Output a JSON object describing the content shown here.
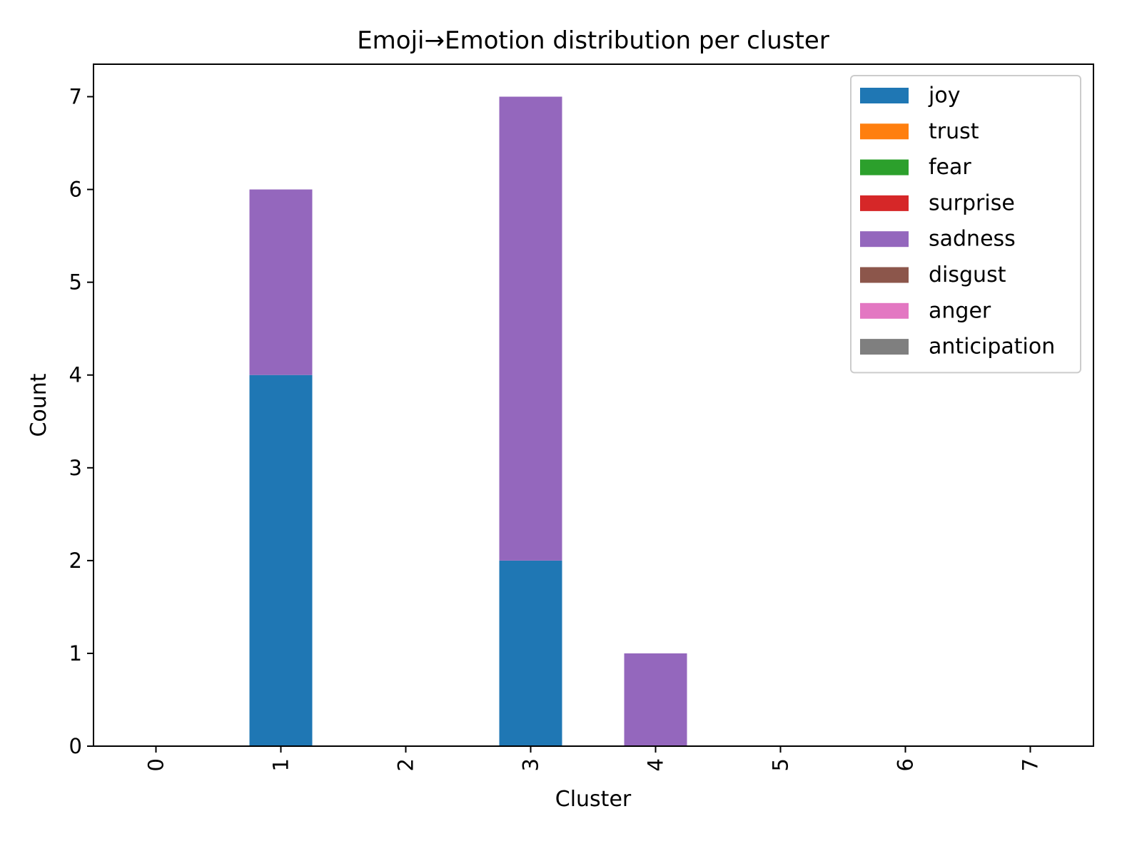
{
  "chart_data": {
    "type": "bar",
    "stacked": true,
    "title": "Emoji→Emotion distribution per cluster",
    "xlabel": "Cluster",
    "ylabel": "Count",
    "categories": [
      "0",
      "1",
      "2",
      "3",
      "4",
      "5",
      "6",
      "7"
    ],
    "yticks": [
      "0",
      "1",
      "2",
      "3",
      "4",
      "5",
      "6",
      "7"
    ],
    "ylim": [
      0,
      7.35
    ],
    "grid": false,
    "legend_position": "top-right",
    "series": [
      {
        "name": "joy",
        "color": "#1f77b4",
        "values": [
          0,
          4,
          0,
          2,
          0,
          0,
          0,
          0
        ]
      },
      {
        "name": "trust",
        "color": "#ff7f0e",
        "values": [
          0,
          0,
          0,
          0,
          0,
          0,
          0,
          0
        ]
      },
      {
        "name": "fear",
        "color": "#2ca02c",
        "values": [
          0,
          0,
          0,
          0,
          0,
          0,
          0,
          0
        ]
      },
      {
        "name": "surprise",
        "color": "#d62728",
        "values": [
          0,
          0,
          0,
          0,
          0,
          0,
          0,
          0
        ]
      },
      {
        "name": "sadness",
        "color": "#9467bd",
        "values": [
          0,
          2,
          0,
          5,
          1,
          0,
          0,
          0
        ]
      },
      {
        "name": "disgust",
        "color": "#8c564b",
        "values": [
          0,
          0,
          0,
          0,
          0,
          0,
          0,
          0
        ]
      },
      {
        "name": "anger",
        "color": "#e377c2",
        "values": [
          0,
          0,
          0,
          0,
          0,
          0,
          0,
          0
        ]
      },
      {
        "name": "anticipation",
        "color": "#7f7f7f",
        "values": [
          0,
          0,
          0,
          0,
          0,
          0,
          0,
          0
        ]
      }
    ]
  }
}
